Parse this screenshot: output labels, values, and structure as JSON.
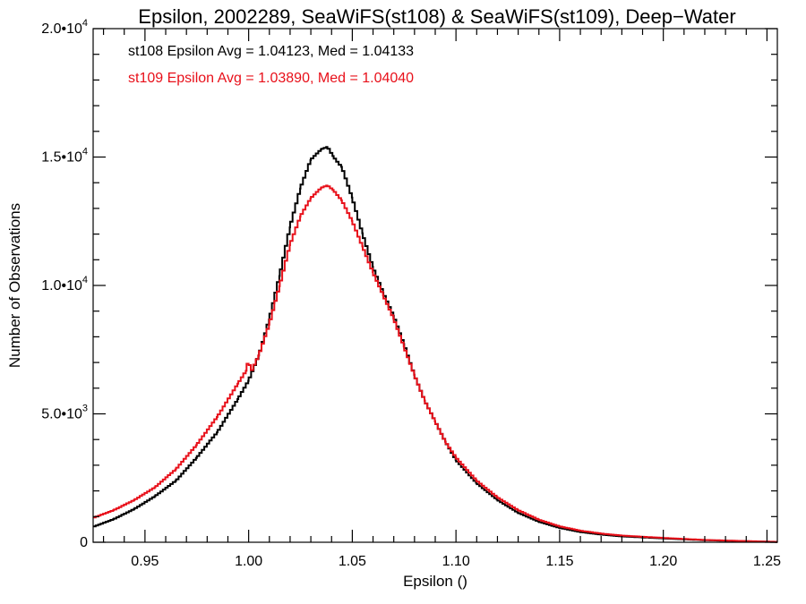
{
  "chart_data": {
    "type": "line",
    "title": "Epsilon, 2002289, SeaWiFS(st108) & SeaWiFS(st109), Deep−Water",
    "xlabel": "Epsilon ()",
    "ylabel": "Number of Observations",
    "xlim": [
      0.925,
      1.255
    ],
    "ylim": [
      0,
      20000
    ],
    "x_ticks": [
      0.95,
      1.0,
      1.05,
      1.1,
      1.15,
      1.2,
      1.25
    ],
    "x_tick_labels": [
      "0.95",
      "1.00",
      "1.05",
      "1.10",
      "1.15",
      "1.20",
      "1.25"
    ],
    "y_ticks": [
      {
        "value": 0,
        "mantissa": "0",
        "exp": ""
      },
      {
        "value": 5000,
        "mantissa": "5.0•10",
        "exp": "3"
      },
      {
        "value": 10000,
        "mantissa": "1.0•10",
        "exp": "4"
      },
      {
        "value": 15000,
        "mantissa": "1.5•10",
        "exp": "4"
      },
      {
        "value": 20000,
        "mantissa": "2.0•10",
        "exp": "4"
      }
    ],
    "grid": false,
    "legend_placement": "top-left (text annotations)",
    "series": [
      {
        "name": "st108",
        "label": "st108 Epsilon Avg = 1.04123, Med = 1.04133",
        "color": "#000000",
        "x": [
          0.925,
          0.935,
          0.945,
          0.955,
          0.965,
          0.975,
          0.985,
          0.995,
          1.0,
          1.005,
          1.01,
          1.015,
          1.02,
          1.025,
          1.03,
          1.035,
          1.038,
          1.041,
          1.045,
          1.05,
          1.055,
          1.06,
          1.065,
          1.07,
          1.075,
          1.08,
          1.085,
          1.09,
          1.095,
          1.1,
          1.11,
          1.12,
          1.13,
          1.14,
          1.15,
          1.16,
          1.17,
          1.18,
          1.2,
          1.22,
          1.24,
          1.255
        ],
        "y": [
          600,
          900,
          1300,
          1800,
          2400,
          3300,
          4300,
          5600,
          6300,
          7300,
          8700,
          10400,
          12300,
          13800,
          14900,
          15300,
          15400,
          15000,
          14600,
          13400,
          12000,
          10700,
          9700,
          8800,
          7700,
          6500,
          5500,
          4700,
          3900,
          3200,
          2300,
          1650,
          1150,
          800,
          560,
          400,
          300,
          230,
          150,
          80,
          40,
          10
        ]
      },
      {
        "name": "st109",
        "label": "st109 Epsilon Avg = 1.03890, Med = 1.04040",
        "color": "#e8101a",
        "x": [
          0.925,
          0.935,
          0.945,
          0.955,
          0.965,
          0.975,
          0.985,
          0.995,
          0.999,
          1.0,
          1.001,
          1.005,
          1.01,
          1.015,
          1.02,
          1.025,
          1.03,
          1.035,
          1.038,
          1.041,
          1.045,
          1.05,
          1.055,
          1.06,
          1.065,
          1.07,
          1.075,
          1.08,
          1.085,
          1.09,
          1.095,
          1.1,
          1.11,
          1.12,
          1.13,
          1.14,
          1.15,
          1.16,
          1.17,
          1.18,
          1.2,
          1.22,
          1.24,
          1.255
        ],
        "y": [
          950,
          1250,
          1650,
          2150,
          2850,
          3800,
          4900,
          6200,
          6700,
          7200,
          6600,
          7300,
          8500,
          10000,
          11600,
          12700,
          13400,
          13800,
          13900,
          13700,
          13300,
          12500,
          11500,
          10500,
          9600,
          8700,
          7600,
          6500,
          5500,
          4700,
          3900,
          3300,
          2400,
          1750,
          1250,
          880,
          620,
          450,
          340,
          260,
          170,
          90,
          45,
          15
        ]
      }
    ]
  }
}
